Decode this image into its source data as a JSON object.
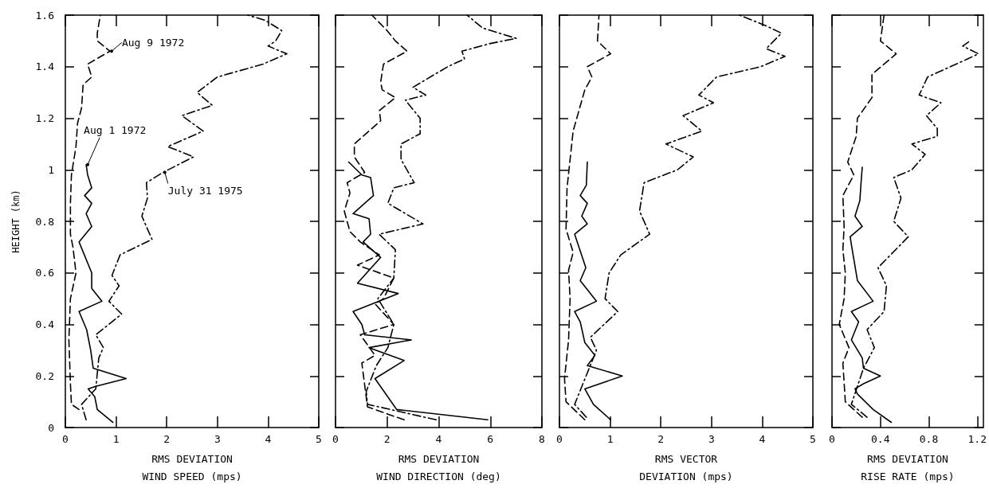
{
  "chart_data": [
    {
      "type": "line",
      "ylabel": "HEIGHT (km)",
      "xlabel": "RMS DEVIATION\nWIND SPEED (mps)",
      "xlim": [
        0,
        5
      ],
      "xticks": [
        0,
        1,
        2,
        3,
        4,
        5
      ],
      "ylim": [
        0,
        1.6
      ],
      "yticks": [
        0,
        0.2,
        0.4,
        0.6,
        0.8,
        1.0,
        1.2,
        1.4,
        1.6
      ],
      "marker": "none",
      "series": [
        {
          "color": "#000000",
          "line_style": "solid",
          "x": [
            0.94,
            0.63,
            0.58,
            0.45,
            0.6,
            1.2,
            0.55,
            0.5,
            0.42,
            0.27,
            0.72,
            0.52,
            0.52,
            0.27,
            0.52,
            0.41,
            0.52,
            0.38,
            0.52,
            0.44,
            0.41
          ],
          "values": [
            0.02,
            0.07,
            0.12,
            0.15,
            0.16,
            0.19,
            0.23,
            0.3,
            0.38,
            0.45,
            0.49,
            0.54,
            0.6,
            0.72,
            0.78,
            0.83,
            0.87,
            0.9,
            0.93,
            0.98,
            1.02
          ]
        },
        {
          "color": "#000000",
          "line_style": "dashed",
          "x": [
            0.27,
            0.12,
            0.1,
            0.07,
            0.1,
            0.21,
            0.15,
            0.1,
            0.1,
            0.12,
            0.21,
            0.24,
            0.32,
            0.35,
            0.52,
            0.44,
            0.88,
            0.63,
            0.63,
            0.69
          ],
          "values": [
            0.07,
            0.09,
            0.17,
            0.34,
            0.5,
            0.6,
            0.7,
            0.75,
            0.87,
            0.98,
            1.09,
            1.18,
            1.24,
            1.33,
            1.36,
            1.41,
            1.46,
            1.5,
            1.53,
            1.6
          ]
        },
        {
          "color": "#000000",
          "line_style": "dashdot",
          "x": [
            0.41,
            0.32,
            0.6,
            0.66,
            0.75,
            0.6,
            1.11,
            0.86,
            1.06,
            0.92,
            1.08,
            1.71,
            1.51,
            1.62,
            1.6,
            1.93,
            2.53,
            2.02,
            2.72,
            2.3,
            2.9,
            2.6,
            3.0,
            3.9,
            4.37,
            4.0,
            4.15,
            4.27,
            3.94,
            3.6
          ],
          "values": [
            0.03,
            0.09,
            0.15,
            0.27,
            0.31,
            0.36,
            0.44,
            0.49,
            0.55,
            0.59,
            0.67,
            0.73,
            0.82,
            0.89,
            0.95,
            0.99,
            1.05,
            1.09,
            1.15,
            1.21,
            1.25,
            1.3,
            1.36,
            1.41,
            1.45,
            1.48,
            1.5,
            1.54,
            1.58,
            1.6
          ]
        }
      ],
      "annotations": [
        {
          "text": "Aug 9 1972",
          "x": 0.88,
          "y": 1.46
        },
        {
          "text": "Aug 1 1972",
          "x": 0.41,
          "y": 1.02
        },
        {
          "text": "July 31 1975",
          "x": 1.93,
          "y": 0.99
        }
      ]
    },
    {
      "type": "line",
      "xlabel": "RMS DEVIATION\nWIND DIRECTION (deg)",
      "xlim": [
        0,
        8
      ],
      "xticks": [
        0,
        2,
        4,
        6,
        8
      ],
      "ylim": [
        0,
        1.6
      ],
      "yticks": [
        0,
        0.2,
        0.4,
        0.6,
        0.8,
        1.0,
        1.2,
        1.4,
        1.6
      ],
      "tick_labels": "x",
      "marker": "none",
      "series": [
        {
          "color": "#000000",
          "line_style": "solid",
          "x": [
            5.9,
            2.37,
            1.53,
            2.66,
            1.3,
            2.94,
            1.13,
            1.02,
            0.68,
            2.43,
            0.85,
            1.75,
            1.07,
            1.36,
            1.3,
            0.68,
            1.47,
            1.36,
            1.02,
            0.51
          ],
          "values": [
            0.03,
            0.07,
            0.19,
            0.26,
            0.31,
            0.34,
            0.36,
            0.4,
            0.45,
            0.52,
            0.56,
            0.66,
            0.72,
            0.75,
            0.81,
            0.83,
            0.9,
            0.97,
            0.98,
            1.03
          ]
        },
        {
          "color": "#000000",
          "line_style": "dashed",
          "x": [
            2.66,
            1.24,
            1.02,
            1.53,
            0.96,
            2.26,
            1.53,
            1.86,
            2.26,
            0.85,
            1.7,
            0.96,
            0.56,
            0.34,
            0.56,
            0.45,
            1.13,
            0.73,
            0.73,
            1.75,
            1.7,
            2.32,
            1.81,
            1.75,
            1.86,
            2.77,
            2.32,
            2.0,
            1.41
          ],
          "values": [
            0.03,
            0.08,
            0.25,
            0.28,
            0.36,
            0.4,
            0.48,
            0.5,
            0.58,
            0.63,
            0.67,
            0.72,
            0.76,
            0.84,
            0.91,
            0.95,
            0.99,
            1.05,
            1.1,
            1.19,
            1.23,
            1.28,
            1.31,
            1.34,
            1.41,
            1.46,
            1.5,
            1.54,
            1.6
          ]
        },
        {
          "color": "#000000",
          "line_style": "dashdot",
          "x": [
            3.9,
            1.24,
            1.19,
            1.58,
            2.03,
            2.26,
            1.64,
            2.26,
            2.32,
            1.69,
            3.39,
            2.03,
            2.26,
            3.05,
            2.54,
            2.54,
            3.28,
            3.28,
            2.71,
            3.5,
            3.0,
            4.35,
            5.0,
            4.9,
            6.0,
            7.0,
            5.7,
            5.1
          ],
          "values": [
            0.03,
            0.09,
            0.14,
            0.24,
            0.31,
            0.4,
            0.5,
            0.58,
            0.69,
            0.75,
            0.79,
            0.87,
            0.93,
            0.95,
            1.04,
            1.1,
            1.14,
            1.2,
            1.27,
            1.29,
            1.32,
            1.4,
            1.43,
            1.46,
            1.49,
            1.51,
            1.55,
            1.6
          ]
        }
      ]
    },
    {
      "type": "line",
      "xlabel": "RMS VECTOR\nDEVIATION (mps)",
      "xlim": [
        0,
        5
      ],
      "xticks": [
        0,
        1,
        2,
        3,
        4,
        5
      ],
      "ylim": [
        0,
        1.6
      ],
      "yticks": [
        0,
        0.2,
        0.4,
        0.6,
        0.8,
        1.0,
        1.2,
        1.4,
        1.6
      ],
      "tick_labels": "x",
      "marker": "none",
      "series": [
        {
          "color": "#000000",
          "line_style": "solid",
          "x": [
            1.01,
            0.67,
            0.5,
            1.24,
            0.55,
            0.7,
            0.5,
            0.41,
            0.3,
            0.73,
            0.41,
            0.52,
            0.3,
            0.55,
            0.44,
            0.55,
            0.41,
            0.53,
            0.55
          ],
          "values": [
            0.03,
            0.09,
            0.15,
            0.2,
            0.24,
            0.28,
            0.33,
            0.41,
            0.45,
            0.49,
            0.57,
            0.62,
            0.75,
            0.79,
            0.82,
            0.87,
            0.9,
            0.94,
            1.03
          ]
        },
        {
          "color": "#000000",
          "line_style": "dashed",
          "x": [
            0.5,
            0.13,
            0.1,
            0.18,
            0.21,
            0.18,
            0.27,
            0.13,
            0.15,
            0.27,
            0.5,
            0.64,
            0.55,
            1.01,
            0.75,
            0.78
          ],
          "values": [
            0.03,
            0.1,
            0.19,
            0.34,
            0.5,
            0.61,
            0.68,
            0.77,
            0.93,
            1.15,
            1.31,
            1.36,
            1.4,
            1.45,
            1.5,
            1.6
          ]
        },
        {
          "color": "#000000",
          "line_style": "dashdot",
          "x": [
            0.53,
            0.3,
            0.73,
            0.61,
            1.15,
            0.9,
            0.98,
            1.21,
            1.78,
            1.58,
            1.67,
            2.33,
            2.64,
            2.1,
            2.81,
            2.44,
            3.04,
            2.75,
            3.1,
            3.97,
            4.45,
            4.08,
            4.38,
            4.06,
            3.55
          ],
          "values": [
            0.04,
            0.09,
            0.3,
            0.35,
            0.45,
            0.5,
            0.6,
            0.67,
            0.75,
            0.84,
            0.95,
            1.0,
            1.05,
            1.1,
            1.15,
            1.21,
            1.26,
            1.29,
            1.36,
            1.4,
            1.44,
            1.47,
            1.53,
            1.56,
            1.6
          ]
        }
      ]
    },
    {
      "type": "line",
      "xlabel": "RMS DEVIATION\nRISE RATE (mps)",
      "xlim": [
        0,
        1.25
      ],
      "xticks": [
        0,
        0.4,
        0.8,
        1.2
      ],
      "ylim": [
        0,
        1.6
      ],
      "yticks": [
        0,
        0.2,
        0.4,
        0.6,
        0.8,
        1.0,
        1.2,
        1.4,
        1.6
      ],
      "tick_labels": "x",
      "marker": "none",
      "series": [
        {
          "color": "#000000",
          "line_style": "solid",
          "x": [
            0.49,
            0.34,
            0.21,
            0.19,
            0.26,
            0.4,
            0.26,
            0.25,
            0.16,
            0.22,
            0.16,
            0.34,
            0.21,
            0.16,
            0.15,
            0.25,
            0.19,
            0.23,
            0.24,
            0.25
          ],
          "values": [
            0.02,
            0.07,
            0.13,
            0.15,
            0.17,
            0.2,
            0.23,
            0.27,
            0.34,
            0.41,
            0.45,
            0.49,
            0.57,
            0.71,
            0.74,
            0.78,
            0.82,
            0.88,
            0.95,
            1.01
          ]
        },
        {
          "color": "#000000",
          "line_style": "dashed",
          "x": [
            0.25,
            0.11,
            0.09,
            0.14,
            0.06,
            0.1,
            0.11,
            0.09,
            0.1,
            0.09,
            0.18,
            0.13,
            0.2,
            0.21,
            0.33,
            0.33,
            0.53,
            0.4,
            0.43
          ],
          "values": [
            0.04,
            0.1,
            0.25,
            0.31,
            0.4,
            0.5,
            0.6,
            0.69,
            0.78,
            0.9,
            0.98,
            1.03,
            1.13,
            1.2,
            1.28,
            1.37,
            1.45,
            1.5,
            1.6
          ]
        },
        {
          "color": "#000000",
          "line_style": "dashdot",
          "x": [
            0.29,
            0.16,
            0.26,
            0.35,
            0.29,
            0.43,
            0.45,
            0.38,
            0.63,
            0.51,
            0.57,
            0.51,
            0.66,
            0.77,
            0.66,
            0.87,
            0.87,
            0.78,
            0.9,
            0.72,
            0.79,
            1.12,
            1.21,
            1.08,
            1.14
          ],
          "values": [
            0.04,
            0.09,
            0.23,
            0.31,
            0.38,
            0.45,
            0.55,
            0.62,
            0.74,
            0.8,
            0.89,
            0.97,
            1.0,
            1.06,
            1.1,
            1.13,
            1.16,
            1.21,
            1.26,
            1.29,
            1.36,
            1.43,
            1.45,
            1.48,
            1.5
          ]
        }
      ]
    }
  ]
}
